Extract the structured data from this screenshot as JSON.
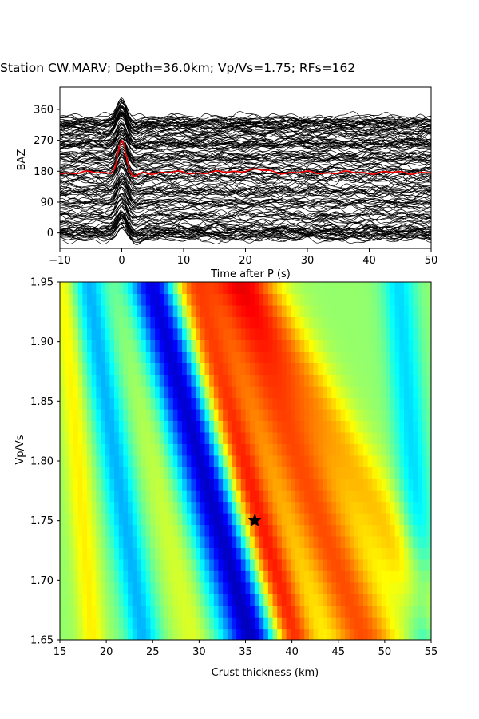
{
  "title": "Station CW.MARV; Depth=36.0km; Vp/Vs=1.75; RFs=162",
  "chart_data": [
    {
      "type": "line",
      "xlabel": "Time after P (s)",
      "ylabel": "BAZ",
      "xlim": [
        -10,
        50
      ],
      "ylim": [
        -45,
        425
      ],
      "xticks": [
        "−10",
        "0",
        "10",
        "20",
        "30",
        "40",
        "50"
      ],
      "xtick_values": [
        -10,
        0,
        10,
        20,
        30,
        40,
        50
      ],
      "yticks": [
        "0",
        "90",
        "180",
        "270",
        "360"
      ],
      "ytick_values": [
        0,
        90,
        180,
        270,
        360
      ],
      "trace_count": 162,
      "trace_color": "#000000",
      "stack_color": "#ff0000",
      "stack_baseline": 176,
      "stack_peak": {
        "x": 0,
        "y": 268
      },
      "grid": false
    },
    {
      "type": "heatmap",
      "xlabel": "Crust thickness (km)",
      "ylabel": "Vp/Vs",
      "xlim": [
        15,
        55
      ],
      "ylim": [
        1.65,
        1.95
      ],
      "xticks": [
        "15",
        "20",
        "25",
        "30",
        "35",
        "40",
        "45",
        "50",
        "55"
      ],
      "xtick_values": [
        15,
        20,
        25,
        30,
        35,
        40,
        45,
        50,
        55
      ],
      "yticks": [
        "1.65",
        "1.70",
        "1.75",
        "1.80",
        "1.85",
        "1.90",
        "1.95"
      ],
      "ytick_values": [
        1.65,
        1.7,
        1.75,
        1.8,
        1.85,
        1.9,
        1.95
      ],
      "colormap": "jet",
      "best_fit": {
        "thickness": 36.0,
        "vpvs": 1.75,
        "marker": "star"
      },
      "grid": false
    }
  ]
}
